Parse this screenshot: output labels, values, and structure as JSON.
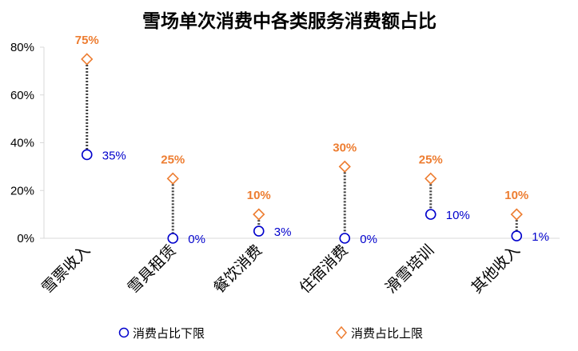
{
  "chart_data": {
    "type": "dot-range",
    "title": "雪场单次消费中各类服务消费额占比",
    "categories": [
      "雪票收入",
      "雪具租赁",
      "餐饮消费",
      "住宿消费",
      "滑雪培训",
      "其他收入"
    ],
    "series": [
      {
        "name": "消费占比下限",
        "values": [
          35,
          0,
          3,
          0,
          10,
          1
        ],
        "labels": [
          "35%",
          "0%",
          "3%",
          "0%",
          "10%",
          "1%"
        ],
        "marker": "circle"
      },
      {
        "name": "消费占比上限",
        "values": [
          75,
          25,
          10,
          30,
          25,
          10
        ],
        "labels": [
          "75%",
          "25%",
          "10%",
          "30%",
          "25%",
          "10%"
        ],
        "marker": "diamond"
      }
    ],
    "ylim": [
      0,
      80
    ],
    "yticks": [
      0,
      20,
      40,
      60,
      80
    ],
    "ytick_labels": [
      "0%",
      "20%",
      "40%",
      "60%",
      "80%"
    ],
    "unit": "%",
    "legend_position": "bottom",
    "grid": false
  },
  "colors": {
    "lower": "#0000cc",
    "upper": "#ed7d31",
    "connector": "#404040",
    "axis": "#d9d9d9"
  }
}
